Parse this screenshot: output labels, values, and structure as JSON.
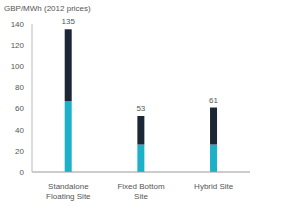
{
  "chart_data": {
    "type": "bar",
    "y_label": "GBP/MWh (2012 prices)",
    "categories": [
      "Standalone Floating Site",
      "Fixed Bottom Site",
      "Hybrid Site"
    ],
    "series": [
      {
        "color": "#1cb1c9",
        "values": [
          67,
          26,
          26
        ]
      },
      {
        "color": "#1b2735",
        "values": [
          68,
          27,
          35
        ]
      }
    ],
    "totals": [
      135,
      53,
      61
    ],
    "stacked": true,
    "grid": false,
    "ylim": [
      0,
      140
    ],
    "yticks": [
      0,
      20,
      40,
      60,
      80,
      100,
      120,
      140
    ]
  }
}
